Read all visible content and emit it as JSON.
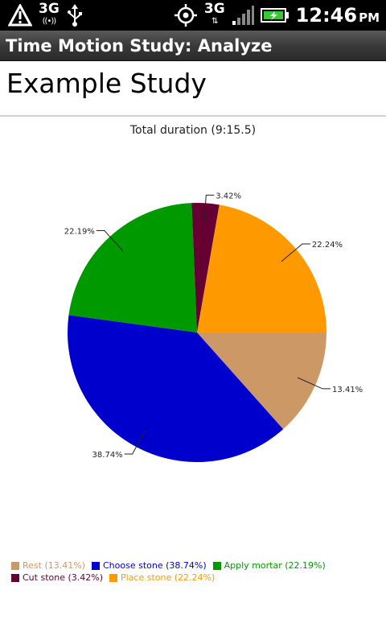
{
  "status_bar": {
    "network_left": "3G",
    "network_right": "3G",
    "time": "12:46",
    "ampm": "PM",
    "icons": [
      "warning-icon",
      "wifi-tether-icon",
      "usb-icon",
      "gps-icon",
      "signal-icon",
      "battery-charging-icon"
    ]
  },
  "app": {
    "title": "Time Motion Study: Analyze"
  },
  "study": {
    "name": "Example Study"
  },
  "chart_data": {
    "type": "pie",
    "title": "Total duration (9:15.5)",
    "slices": [
      {
        "label": "Rest",
        "percent": 13.41,
        "value_label": "13.41%",
        "legend": "Rest (13.41%)",
        "color": "#cc9966"
      },
      {
        "label": "Choose stone",
        "percent": 38.74,
        "value_label": "38.74%",
        "legend": "Choose stone (38.74%)",
        "color": "#0000cc"
      },
      {
        "label": "Apply mortar",
        "percent": 22.19,
        "value_label": "22.19%",
        "legend": "Apply mortar (22.19%)",
        "color": "#009900"
      },
      {
        "label": "Cut stone",
        "percent": 3.42,
        "value_label": "3.42%",
        "legend": "Cut stone (3.42%)",
        "color": "#660033"
      },
      {
        "label": "Place stone",
        "percent": 22.24,
        "value_label": "22.24%",
        "legend": "Place stone (22.24%)",
        "color": "#ff9900"
      }
    ],
    "legend_position": "bottom-left"
  }
}
